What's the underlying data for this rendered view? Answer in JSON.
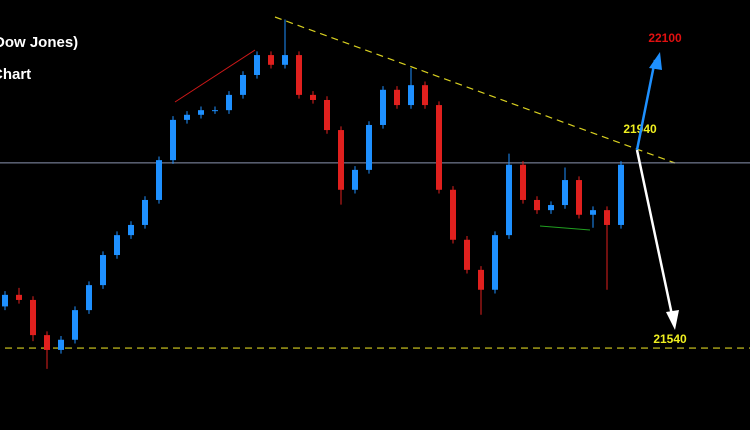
{
  "chart_data": {
    "type": "candlestick",
    "title": "Dow Jones)",
    "subtitle": "Chart",
    "ylim": [
      21363,
      22292
    ],
    "up_color": "#1e90ff",
    "down_color": "#e0201e",
    "levels": [
      22100,
      21940,
      21540
    ],
    "open": [
      21630,
      21655,
      21644,
      21568,
      21536,
      21558,
      21622,
      21676,
      21741,
      21784,
      21806,
      21860,
      21946,
      22033,
      22044,
      22054,
      22054,
      22087,
      22130,
      22173,
      22152,
      22173,
      22087,
      22076,
      22011,
      21882,
      21925,
      22022,
      22098,
      22065,
      22108,
      22065,
      21882,
      21774,
      21709,
      21666,
      21784,
      21936,
      21860,
      21838,
      21849,
      21903,
      21828,
      21838,
      21806
    ],
    "high": [
      21663,
      21670,
      21652,
      21576,
      21566,
      21630,
      21684,
      21749,
      21792,
      21814,
      21868,
      21954,
      22041,
      22052,
      22062,
      22062,
      22095,
      22138,
      22181,
      22181,
      22250,
      22181,
      22095,
      22084,
      22019,
      21933,
      22030,
      22106,
      22106,
      22145,
      22116,
      22073,
      21890,
      21782,
      21717,
      21792,
      21960,
      21944,
      21868,
      21857,
      21930,
      21911,
      21846,
      21846,
      21944
    ],
    "low": [
      21622,
      21636,
      21555,
      21495,
      21528,
      21550,
      21614,
      21668,
      21733,
      21776,
      21798,
      21852,
      21938,
      22025,
      22036,
      22046,
      22046,
      22079,
      22122,
      22144,
      22144,
      22079,
      22068,
      22003,
      21850,
      21874,
      21917,
      22014,
      22057,
      22057,
      22057,
      21874,
      21766,
      21701,
      21612,
      21658,
      21776,
      21852,
      21830,
      21830,
      21841,
      21820,
      21800,
      21666,
      21798
    ],
    "close": [
      21655,
      21644,
      21568,
      21536,
      21558,
      21622,
      21676,
      21741,
      21784,
      21806,
      21860,
      21946,
      22033,
      22044,
      22054,
      22054,
      22087,
      22130,
      22173,
      22152,
      22173,
      22087,
      22076,
      22011,
      21882,
      21925,
      22022,
      22098,
      22065,
      22108,
      22065,
      21882,
      21774,
      21709,
      21666,
      21784,
      21936,
      21860,
      21838,
      21849,
      21903,
      21828,
      21838,
      21806,
      21936
    ]
  }
}
